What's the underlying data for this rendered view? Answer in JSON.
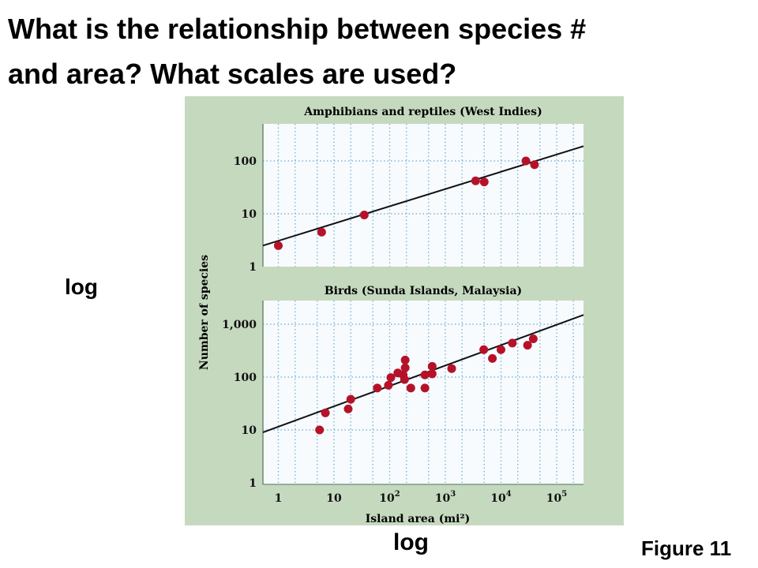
{
  "slide": {
    "title_line1": "What is the relationship between species #",
    "title_line2": "and area?  What scales are used?",
    "y_scale_label": "log",
    "x_scale_label": "log",
    "figure_label": "Figure 11"
  },
  "colors": {
    "panel_background": "#c5d9bf",
    "plot_background": "#f7fbfd",
    "grid": "#7fb4da",
    "point": "#b5122a",
    "line": "#111111"
  },
  "chart_data": [
    {
      "type": "scatter",
      "title": "Amphibians and reptiles (West Indies)",
      "ylabel": "Number of species",
      "xlabel": "",
      "x_scale": "log",
      "y_scale": "log",
      "xlim": [
        0.6,
        200000
      ],
      "ylim": [
        1,
        500
      ],
      "y_ticks": [
        "1",
        "10",
        "100"
      ],
      "grid": true,
      "points": [
        {
          "x": 1,
          "y": 2.5
        },
        {
          "x": 6,
          "y": 4.5
        },
        {
          "x": 35,
          "y": 9.5
        },
        {
          "x": 3500,
          "y": 42
        },
        {
          "x": 5000,
          "y": 40
        },
        {
          "x": 28000,
          "y": 100
        },
        {
          "x": 40000,
          "y": 85
        }
      ],
      "fit_line": {
        "x": [
          0.6,
          200000
        ],
        "y": [
          2.5,
          190
        ]
      }
    },
    {
      "type": "scatter",
      "title": "Birds (Sunda Islands, Malaysia)",
      "ylabel": "Number of species",
      "xlabel": "Island area (mi²)",
      "x_scale": "log",
      "y_scale": "log",
      "xlim": [
        0.6,
        200000
      ],
      "ylim": [
        1,
        3000
      ],
      "x_ticks": [
        {
          "base": "1",
          "exp": ""
        },
        {
          "base": "10",
          "exp": ""
        },
        {
          "base": "10",
          "exp": "2"
        },
        {
          "base": "10",
          "exp": "3"
        },
        {
          "base": "10",
          "exp": "4"
        },
        {
          "base": "10",
          "exp": "5"
        }
      ],
      "y_ticks": [
        "1",
        "10",
        "100",
        "1,000"
      ],
      "grid": true,
      "points": [
        {
          "x": 5.5,
          "y": 10
        },
        {
          "x": 7,
          "y": 21
        },
        {
          "x": 18,
          "y": 25
        },
        {
          "x": 20,
          "y": 38
        },
        {
          "x": 60,
          "y": 62
        },
        {
          "x": 95,
          "y": 70
        },
        {
          "x": 105,
          "y": 98
        },
        {
          "x": 140,
          "y": 120
        },
        {
          "x": 175,
          "y": 110
        },
        {
          "x": 185,
          "y": 90
        },
        {
          "x": 190,
          "y": 150
        },
        {
          "x": 190,
          "y": 210
        },
        {
          "x": 240,
          "y": 62
        },
        {
          "x": 430,
          "y": 62
        },
        {
          "x": 430,
          "y": 110
        },
        {
          "x": 580,
          "y": 115
        },
        {
          "x": 580,
          "y": 160
        },
        {
          "x": 1300,
          "y": 145
        },
        {
          "x": 4900,
          "y": 330
        },
        {
          "x": 7000,
          "y": 225
        },
        {
          "x": 10000,
          "y": 330
        },
        {
          "x": 16000,
          "y": 440
        },
        {
          "x": 30000,
          "y": 400
        },
        {
          "x": 38000,
          "y": 530
        }
      ],
      "fit_line": {
        "x": [
          0.6,
          200000
        ],
        "y": [
          9,
          1500
        ]
      }
    }
  ]
}
